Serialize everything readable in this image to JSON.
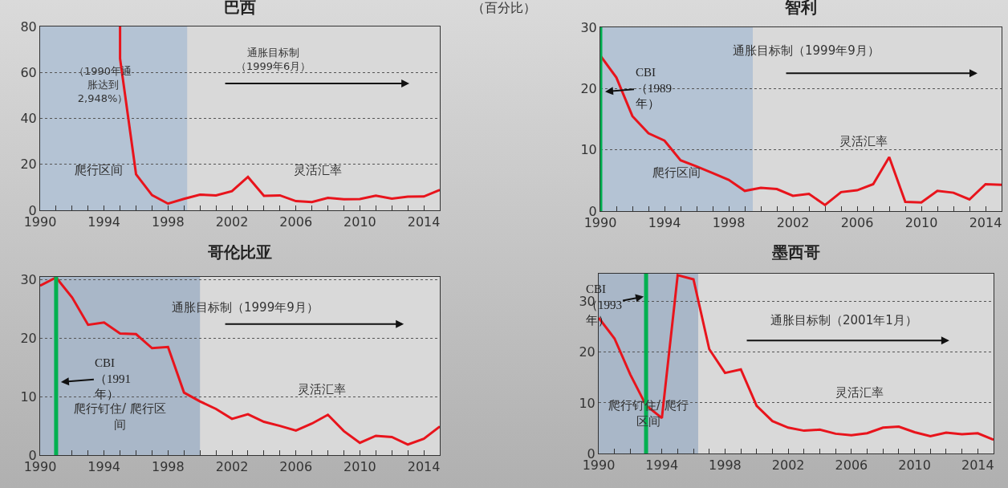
{
  "chart_data": [
    {
      "type": "line",
      "title": "巴西",
      "x": [
        1995,
        1995,
        1996,
        1997,
        1998,
        1999,
        2000,
        2001,
        2002,
        2003,
        2004,
        2005,
        2006,
        2007,
        2008,
        2009,
        2010,
        2011,
        2012,
        2013,
        2014,
        2015
      ],
      "series": [
        {
          "color": "#e8141c",
          "values": [
            80,
            66,
            15.7,
            6.6,
            2.9,
            5,
            6.8,
            6.5,
            8.3,
            14.5,
            6.3,
            6.5,
            4,
            3.6,
            5.4,
            4.8,
            4.9,
            6.4,
            5.1,
            5.9,
            6,
            8.9
          ]
        }
      ],
      "xlim": [
        1990,
        2015
      ],
      "xticks": [
        1990,
        1994,
        1998,
        2002,
        2006,
        2010,
        2014
      ],
      "ylim": [
        0,
        80
      ],
      "yticks": [
        0,
        20,
        40,
        60,
        80
      ],
      "bands": [
        {
          "axis": "x",
          "from": 1990,
          "to": 1999.2,
          "label": "爬行区间",
          "color": "#b4c3d4"
        }
      ],
      "annotations": [
        "（1990年通胀达到2,948%）",
        "通胀目标制（1999年6月）",
        "灵活汇率",
        "（百分比）"
      ],
      "grid": "y",
      "marker": "none",
      "line_style": "solid"
    },
    {
      "type": "line",
      "title": "智利",
      "x": [
        1990,
        1991,
        1992,
        1993,
        1994,
        1995,
        1996,
        1997,
        1998,
        1999,
        2000,
        2001,
        2002,
        2003,
        2004,
        2005,
        2006,
        2007,
        2008,
        2009,
        2010,
        2011,
        2012,
        2013,
        2014,
        2015
      ],
      "series": [
        {
          "color": "#e8141c",
          "values": [
            25.4,
            21.8,
            15.5,
            12.7,
            11.5,
            8.3,
            7.3,
            6.2,
            5.1,
            3.3,
            3.8,
            3.6,
            2.5,
            2.8,
            1,
            3.1,
            3.4,
            4.4,
            8.8,
            1.5,
            1.4,
            3.3,
            3,
            1.9,
            4.4,
            4.3
          ]
        }
      ],
      "xlim": [
        1990,
        2015
      ],
      "xticks": [
        1990,
        1994,
        1998,
        2002,
        2006,
        2010,
        2014
      ],
      "ylim": [
        0,
        30
      ],
      "yticks": [
        0,
        10,
        20,
        30
      ],
      "bands": [
        {
          "axis": "x",
          "from": 1990,
          "to": 1999.5,
          "label": "爬行区间",
          "color": "#b4c3d4"
        }
      ],
      "ref_lines": [
        {
          "axis": "x",
          "value": 1990,
          "label": "CBI（1989年）",
          "color": "#00b050"
        }
      ],
      "annotations": [
        "通胀目标制（1999年9月）",
        "灵活汇率"
      ],
      "grid": "y",
      "marker": "none",
      "line_style": "solid"
    },
    {
      "type": "line",
      "title": "哥伦比亚",
      "x": [
        1990,
        1991,
        1992,
        1993,
        1994,
        1995,
        1996,
        1997,
        1998,
        1999,
        2000,
        2001,
        2002,
        2003,
        2004,
        2005,
        2006,
        2007,
        2008,
        2009,
        2010,
        2011,
        2012,
        2013,
        2014,
        2015
      ],
      "series": [
        {
          "color": "#e8141c",
          "values": [
            29,
            30.4,
            27,
            22.3,
            22.7,
            20.8,
            20.7,
            18.3,
            18.5,
            10.7,
            9.2,
            7.9,
            6.2,
            7,
            5.7,
            5,
            4.2,
            5.4,
            6.9,
            4.1,
            2.1,
            3.3,
            3.1,
            1.8,
            2.8,
            4.9
          ]
        }
      ],
      "xlim": [
        1990,
        2015
      ],
      "xticks": [
        1990,
        1994,
        1998,
        2002,
        2006,
        2010,
        2014
      ],
      "ylim": [
        0,
        30.5
      ],
      "yticks": [
        0,
        10,
        20,
        30
      ],
      "bands": [
        {
          "axis": "x",
          "from": 1990,
          "to": 2000,
          "label": "爬行钉住/ 爬行区间",
          "color": "#a9b7c8"
        }
      ],
      "ref_lines": [
        {
          "axis": "x",
          "value": 1991,
          "label": "CBI（1991年）",
          "color": "#00b050"
        }
      ],
      "annotations": [
        "通胀目标制（1999年9月）",
        "灵活汇率"
      ],
      "grid": "y",
      "marker": "none",
      "line_style": "solid"
    },
    {
      "type": "line",
      "title": "墨西哥",
      "x": [
        1990,
        1991,
        1992,
        1993,
        1994,
        1995,
        1996,
        1997,
        1998,
        1999,
        2000,
        2001,
        2002,
        2003,
        2004,
        2005,
        2006,
        2007,
        2008,
        2009,
        2010,
        2011,
        2012,
        2013,
        2014,
        2015
      ],
      "series": [
        {
          "color": "#e8141c",
          "values": [
            26.8,
            22.7,
            15.6,
            9.5,
            7,
            35.2,
            34.4,
            20.6,
            15.9,
            16.6,
            9.4,
            6.4,
            5.1,
            4.5,
            4.7,
            3.9,
            3.6,
            4,
            5.1,
            5.3,
            4.2,
            3.4,
            4.1,
            3.8,
            4,
            2.7
          ]
        }
      ],
      "xlim": [
        1990,
        2015
      ],
      "xticks": [
        1990,
        1994,
        1998,
        2002,
        2006,
        2010,
        2014
      ],
      "ylim": [
        0,
        35.5
      ],
      "yticks": [
        0,
        10,
        20,
        30
      ],
      "bands": [
        {
          "axis": "x",
          "from": 1990,
          "to": 1996.3,
          "label": "爬行钉住/ 爬行区间",
          "color": "#a9b7c8"
        }
      ],
      "ref_lines": [
        {
          "axis": "x",
          "value": 1993,
          "label": "CBI（1993年）",
          "color": "#00b050"
        }
      ],
      "annotations": [
        "通胀目标制（2001年1月）",
        "灵活汇率"
      ],
      "grid": "y",
      "marker": "none",
      "line_style": "solid"
    }
  ]
}
